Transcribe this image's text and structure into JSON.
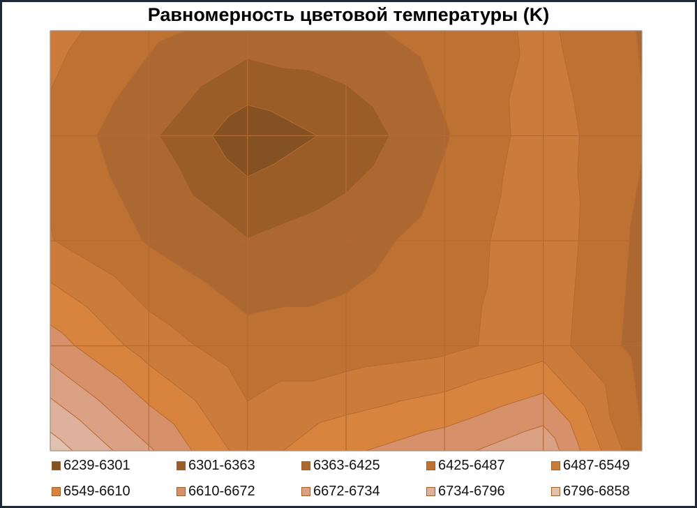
{
  "chart_data": {
    "type": "contour",
    "title": "Равномерность цветовой температуры (K)",
    "grid": true,
    "legend_position": "bottom",
    "z": [
      [
        6510,
        6440,
        6400,
        6410,
        6450,
        6500,
        6420
      ],
      [
        6470,
        6375,
        6260,
        6318,
        6420,
        6520,
        6430
      ],
      [
        6490,
        6420,
        6365,
        6400,
        6450,
        6530,
        6410
      ],
      [
        6640,
        6520,
        6450,
        6450,
        6470,
        6520,
        6400
      ],
      [
        6830,
        6680,
        6520,
        6600,
        6650,
        6720,
        6430
      ]
    ],
    "bands": [
      {
        "label": "6239-6301",
        "lo": 6239,
        "hi": 6301,
        "color": "#845222"
      },
      {
        "label": "6301-6363",
        "lo": 6301,
        "hi": 6363,
        "color": "#9b5d28"
      },
      {
        "label": "6363-6425",
        "lo": 6363,
        "hi": 6425,
        "color": "#ad6730"
      },
      {
        "label": "6425-6487",
        "lo": 6425,
        "hi": 6487,
        "color": "#bd7234"
      },
      {
        "label": "6487-6549",
        "lo": 6487,
        "hi": 6549,
        "color": "#cc7c3a"
      },
      {
        "label": "6549-6610",
        "lo": 6549,
        "hi": 6610,
        "color": "#d9843e"
      },
      {
        "label": "6610-6672",
        "lo": 6610,
        "hi": 6672,
        "color": "#d7916a"
      },
      {
        "label": "6672-6734",
        "lo": 6672,
        "hi": 6734,
        "color": "#daa184"
      },
      {
        "label": "6734-6796",
        "lo": 6734,
        "hi": 6796,
        "color": "#ddb19b"
      },
      {
        "label": "6796-6858",
        "lo": 6796,
        "hi": 6858,
        "color": "#e0c2b3"
      }
    ],
    "line_color": "#b46a30"
  }
}
